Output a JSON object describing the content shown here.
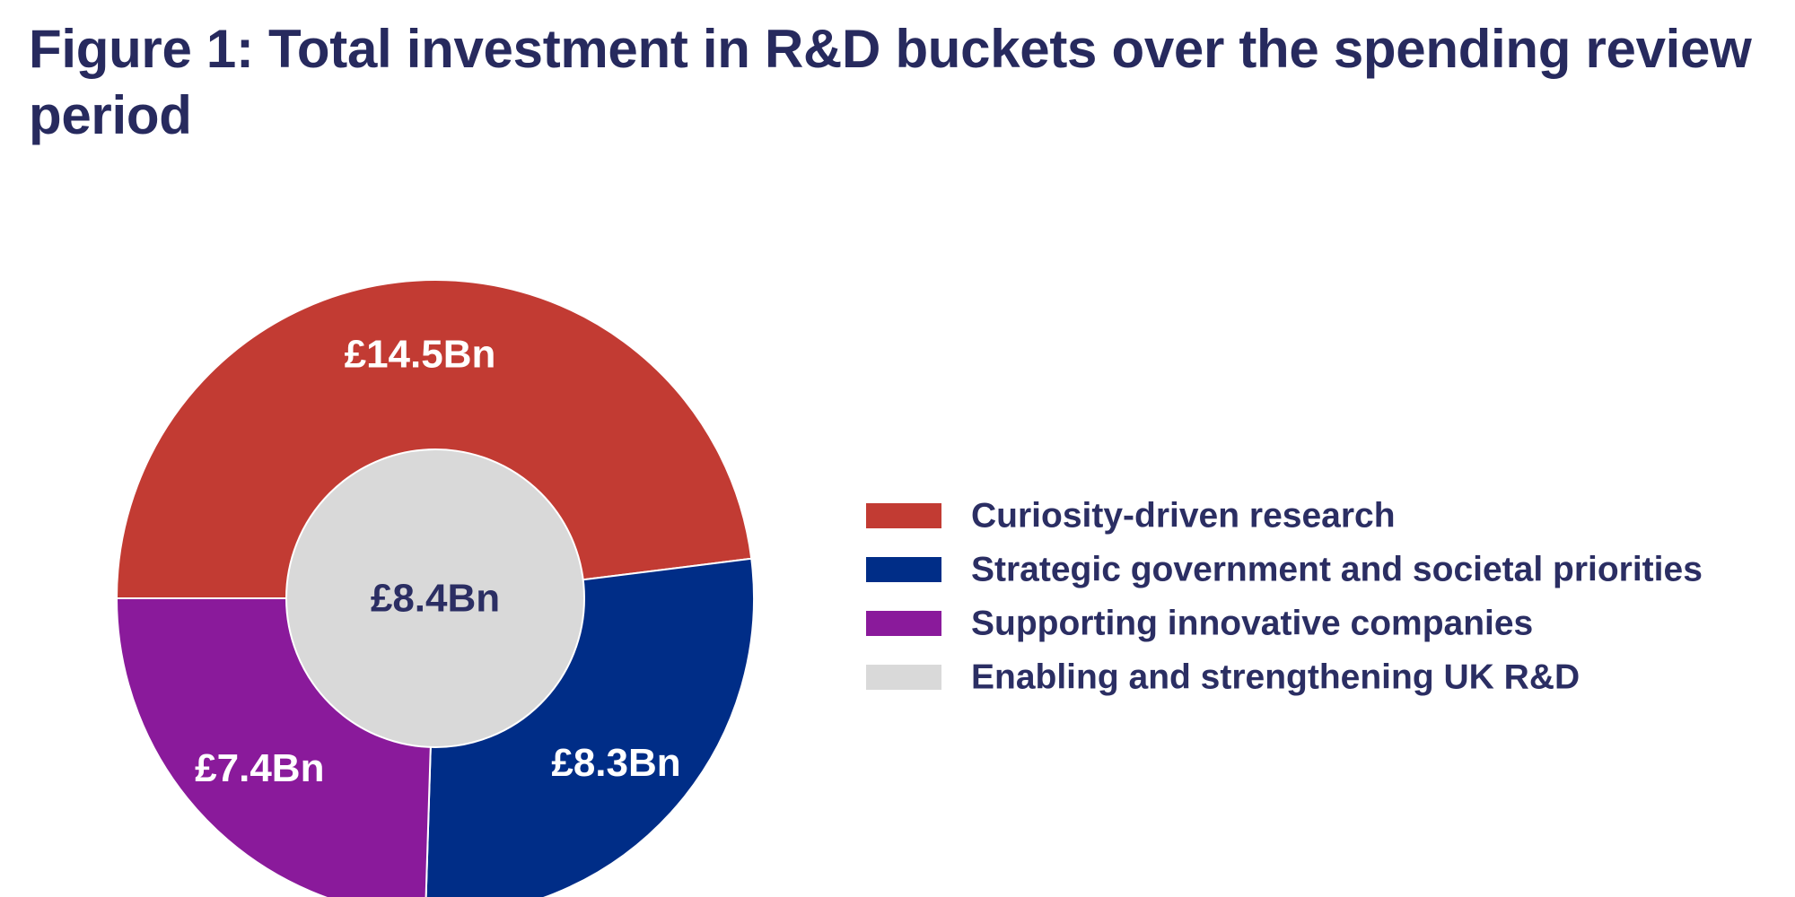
{
  "chart_data": {
    "type": "pie",
    "title": "Figure 1: Total investment in R&D buckets over the spending review period",
    "series": [
      {
        "name": "Curiosity-driven research",
        "value": 14.5,
        "label": "£14.5Bn",
        "color": "#c23b33"
      },
      {
        "name": "Strategic government and societal priorities",
        "value": 8.3,
        "label": "£8.3Bn",
        "color": "#002d87"
      },
      {
        "name": "Supporting innovative companies",
        "value": 7.4,
        "label": "£7.4Bn",
        "color": "#8a1a9b"
      },
      {
        "name": "Enabling and strengthening UK R&D",
        "value": 8.4,
        "label": "£8.4Bn",
        "color": "#d9d9d9"
      }
    ],
    "legend_position": "right"
  }
}
